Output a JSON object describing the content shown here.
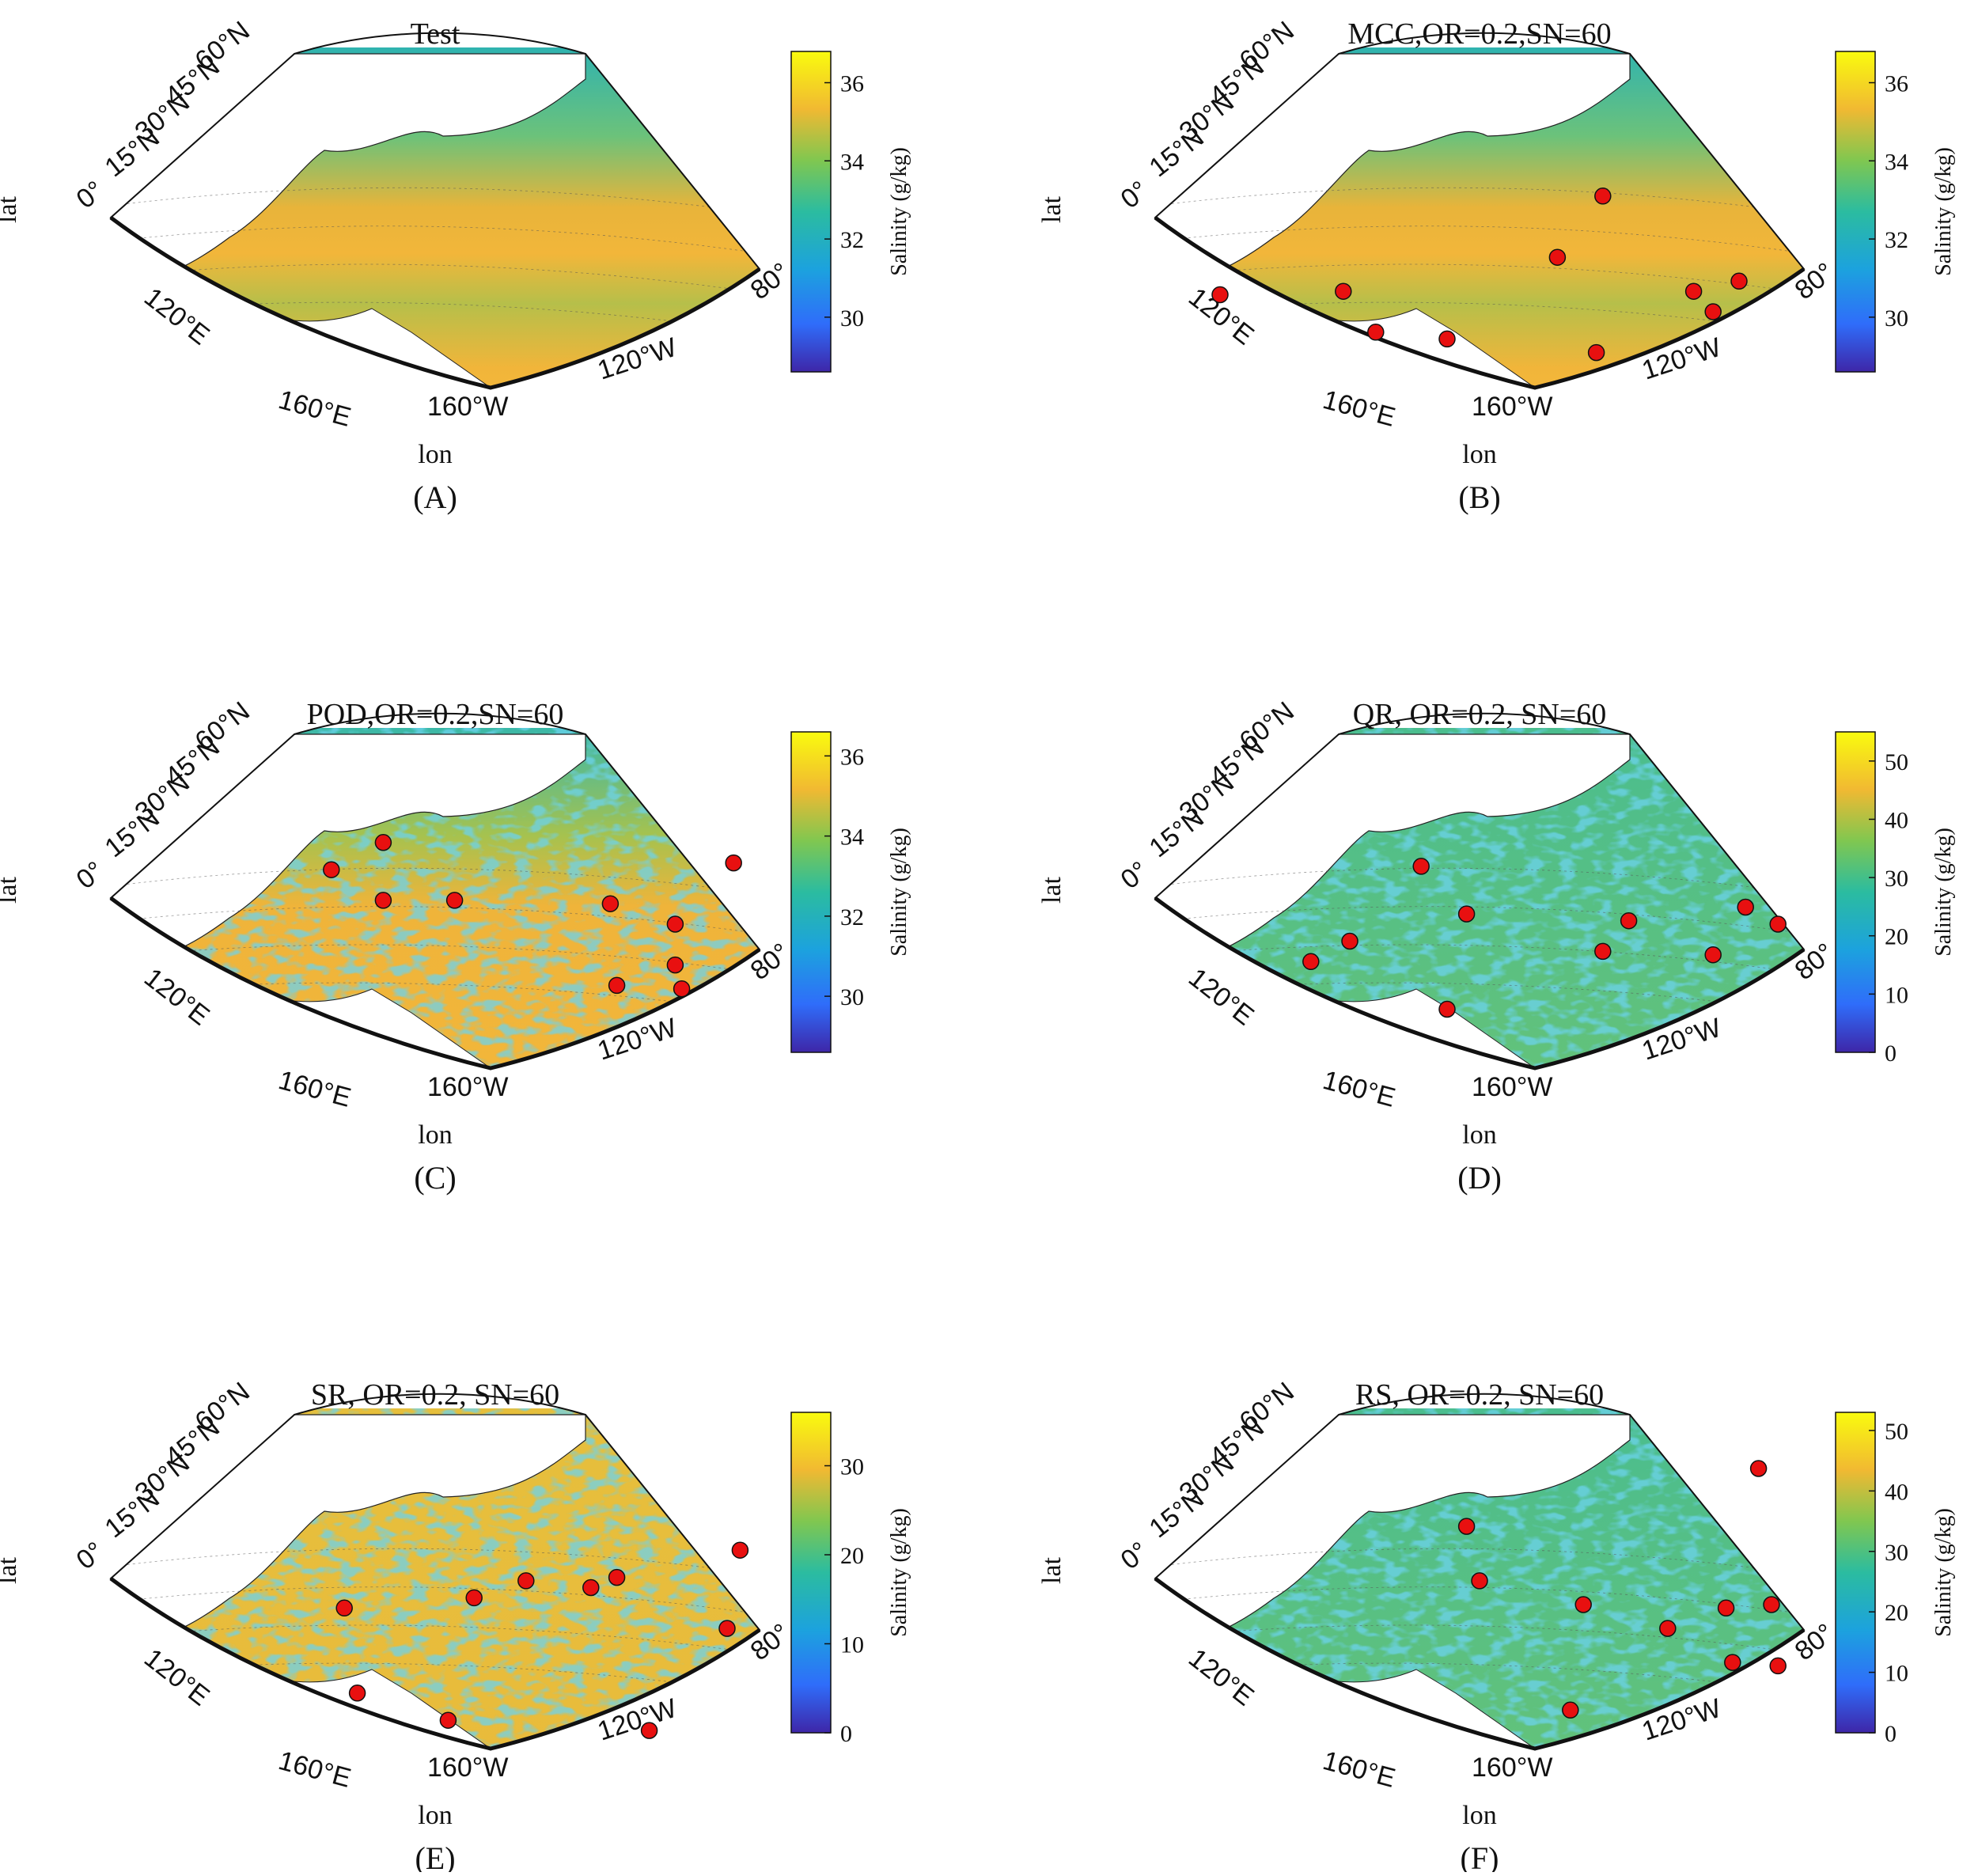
{
  "figure": {
    "panels": [
      {
        "id": "A",
        "title": "Test",
        "caption": "(A)",
        "colorbar": {
          "label": "Salinity (g/kg)",
          "ticks": [
            30,
            32,
            34,
            36
          ],
          "min": 28.6,
          "max": 36.8
        },
        "field_style": "smooth",
        "sensors": []
      },
      {
        "id": "B",
        "title": "MCC,OR=0.2,SN=60",
        "caption": "(B)",
        "colorbar": {
          "label": "Salinity (g/kg)",
          "ticks": [
            30,
            32,
            34,
            36
          ],
          "min": 28.6,
          "max": 36.8
        },
        "field_style": "smooth",
        "sensors": [
          [
            0.75,
            0.1
          ],
          [
            0.74,
            0.29
          ],
          [
            0.86,
            0.34
          ],
          [
            0.88,
            0.45
          ],
          [
            0.46,
            0.69
          ],
          [
            0.64,
            0.62
          ],
          [
            0.74,
            0.83
          ],
          [
            0.71,
            0.9
          ],
          [
            0.8,
            0.86
          ],
          [
            0.92,
            0.68
          ]
        ]
      },
      {
        "id": "C",
        "title": "POD,OR=0.2,SN=60",
        "caption": "(C)",
        "colorbar": {
          "label": "Salinity (g/kg)",
          "ticks": [
            30,
            32,
            34,
            36
          ],
          "min": 28.6,
          "max": 36.6
        },
        "field_style": "noisy",
        "sensors": [
          [
            0.42,
            0.96
          ],
          [
            0.54,
            0.77
          ],
          [
            0.6,
            0.87
          ],
          [
            0.36,
            0.42
          ],
          [
            0.44,
            0.34
          ],
          [
            0.53,
            0.42
          ],
          [
            0.53,
            0.53
          ],
          [
            0.72,
            0.87
          ],
          [
            0.78,
            0.78
          ],
          [
            0.79,
            0.88
          ]
        ]
      },
      {
        "id": "D",
        "title": "QR, OR=0.2, SN=60",
        "caption": "(D)",
        "colorbar": {
          "label": "Salinity (g/kg)",
          "ticks": [
            0,
            10,
            20,
            30,
            40,
            50
          ],
          "min": 0,
          "max": 55
        },
        "field_style": "noisy-green",
        "sensors": [
          [
            0.43,
            0.41
          ],
          [
            0.59,
            0.73
          ],
          [
            0.55,
            0.91
          ],
          [
            0.6,
            0.96
          ],
          [
            0.69,
            0.86
          ],
          [
            0.68,
            0.69
          ],
          [
            0.57,
            0.48
          ],
          [
            0.85,
            0.45
          ],
          [
            0.65,
            0.3
          ],
          [
            0.71,
            0.24
          ]
        ]
      },
      {
        "id": "E",
        "title": "SR, OR=0.2, SN=60",
        "caption": "(E)",
        "colorbar": {
          "label": "Salinity (g/kg)",
          "ticks": [
            0,
            10,
            20,
            30
          ],
          "min": 0,
          "max": 36
        },
        "field_style": "noisy-yellow",
        "sensors": [
          [
            0.44,
            0.97
          ],
          [
            0.52,
            0.78
          ],
          [
            0.55,
            0.74
          ],
          [
            0.53,
            0.64
          ],
          [
            0.61,
            0.36
          ],
          [
            0.58,
            0.56
          ],
          [
            0.86,
            0.38
          ],
          [
            0.67,
            0.95
          ],
          [
            0.97,
            0.83
          ],
          [
            0.94,
            0.52
          ]
        ]
      },
      {
        "id": "F",
        "title": "RS, OR=0.2, SN=60",
        "caption": "(F)",
        "colorbar": {
          "label": "Salinity (g/kg)",
          "ticks": [
            0,
            10,
            20,
            30,
            40,
            50
          ],
          "min": 0,
          "max": 53
        },
        "field_style": "noisy-green",
        "sensors": [
          [
            0.2,
            0.93
          ],
          [
            0.37,
            0.48
          ],
          [
            0.53,
            0.5
          ],
          [
            0.6,
            0.66
          ],
          [
            0.67,
            0.79
          ],
          [
            0.61,
            0.88
          ],
          [
            0.6,
            0.95
          ],
          [
            0.78,
            0.96
          ],
          [
            0.77,
            0.89
          ],
          [
            0.91,
            0.64
          ]
        ]
      }
    ],
    "lat_ticks": [
      "60°N",
      "45°N",
      "30°N",
      "15°N",
      "0°"
    ],
    "lon_ticks": [
      "120°E",
      "160°E",
      "160°W",
      "120°W",
      "80°"
    ],
    "xlabel": "lon",
    "ylabel": "lat",
    "colors": {
      "sensor": "#e81010",
      "land": "#ffffff",
      "coast": "#222222"
    }
  }
}
